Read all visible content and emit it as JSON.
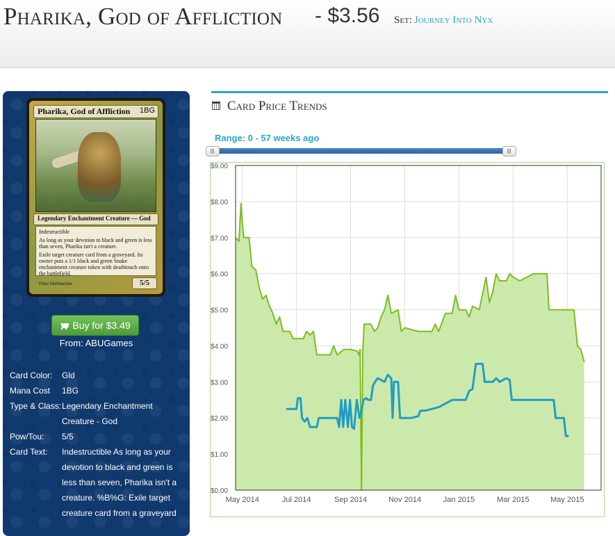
{
  "header": {
    "title": "Pharika, God of Affliction",
    "price": "- $3.56",
    "set_label": "Set:",
    "set_name": "Journey Into Nyx"
  },
  "card": {
    "name": "Pharika, God of Affliction",
    "mana": "1BG",
    "type_line": "Legendary Enchantment Creature — God",
    "text_1": "Indestructible",
    "text_2": "As long as your devotion to black and green is less than seven, Pharika isn't a creature.",
    "text_3": "Exile target creature card from a graveyard. Its owner puts a 1/1 black and green Snake enchantment creature token with deathtouch onto the battlefield.",
    "artist": "Peter Mohrbacher",
    "pt": "5/5"
  },
  "buy": {
    "label": "Buy for $3.49",
    "from": "From: ABUGames"
  },
  "details": [
    {
      "label": "Card Color:",
      "value": "Gld"
    },
    {
      "label": "Mana Cost",
      "value": "1BG"
    },
    {
      "label": "Type & Class:",
      "value": "Legendary Enchantment Creature - God"
    },
    {
      "label": "Pow/Tou:",
      "value": "5/5"
    },
    {
      "label": "Card Text:",
      "value": "Indestructible As long as your devotion to black and green is less than seven, Pharika isn't a creature. %B%G: Exile target creature card from a graveyard"
    }
  ],
  "section": {
    "title": "Card Price Trends",
    "range": "Range: 0 - 57 weeks ago"
  },
  "slider": {
    "start_fraction": 0.0,
    "end_fraction": 1.0
  },
  "colors": {
    "accent": "#27a6c8",
    "green_line": "#7dbd1e",
    "green_fill": "#c9e8a8",
    "blue_line": "#1f9ec4"
  },
  "chart_data": {
    "type": "line",
    "ylim": [
      0,
      9
    ],
    "y_ticks": [
      "$0.00",
      "$1.00",
      "$2.00",
      "$3.00",
      "$4.00",
      "$5.00",
      "$6.00",
      "$7.00",
      "$8.00",
      "$9.00"
    ],
    "x_ticks": [
      "May 2014",
      "Jul 2014",
      "Sep 2014",
      "Nov 2014",
      "Jan 2015",
      "Mar 2015",
      "May 2015"
    ],
    "x_tick_weeks": [
      1,
      9,
      17,
      25,
      33,
      41,
      49
    ],
    "xlim_weeks": [
      0,
      54
    ],
    "grid": true,
    "series": [
      {
        "name": "",
        "area": true,
        "points": [
          [
            0,
            7.0
          ],
          [
            0.5,
            6.9
          ],
          [
            0.8,
            7.95
          ],
          [
            1.0,
            7.4
          ],
          [
            1.2,
            7.0
          ],
          [
            2,
            7.0
          ],
          [
            2.4,
            6.2
          ],
          [
            3,
            6.1
          ],
          [
            3.5,
            5.6
          ],
          [
            4,
            5.3
          ],
          [
            4.5,
            5.4
          ],
          [
            5,
            5.1
          ],
          [
            5.5,
            4.9
          ],
          [
            6,
            4.6
          ],
          [
            6.5,
            4.8
          ],
          [
            7,
            4.4
          ],
          [
            8,
            4.4
          ],
          [
            8.5,
            4.2
          ],
          [
            10,
            4.2
          ],
          [
            10.5,
            4.4
          ],
          [
            11,
            4.3
          ],
          [
            11.5,
            4.4
          ],
          [
            12,
            3.75
          ],
          [
            14,
            3.75
          ],
          [
            14.5,
            4.0
          ],
          [
            15,
            3.75
          ],
          [
            16,
            3.9
          ],
          [
            17,
            3.9
          ],
          [
            18,
            3.85
          ],
          [
            18.2,
            3.75
          ],
          [
            18.4,
            3.9
          ],
          [
            18.6,
            0.0
          ],
          [
            18.8,
            3.9
          ],
          [
            19,
            4.6
          ],
          [
            20,
            4.6
          ],
          [
            20.5,
            4.4
          ],
          [
            21,
            4.5
          ],
          [
            21.5,
            4.8
          ],
          [
            22,
            5.0
          ],
          [
            22.5,
            5.4
          ],
          [
            23,
            4.9
          ],
          [
            24,
            5.0
          ],
          [
            24.5,
            4.4
          ],
          [
            25,
            4.5
          ],
          [
            27,
            4.4
          ],
          [
            29,
            4.4
          ],
          [
            29.5,
            4.6
          ],
          [
            30,
            4.4
          ],
          [
            31,
            4.9
          ],
          [
            32,
            4.9
          ],
          [
            32.5,
            5.4
          ],
          [
            33,
            5.0
          ],
          [
            34,
            5.0
          ],
          [
            34.5,
            4.8
          ],
          [
            35,
            5.1
          ],
          [
            36,
            5.0
          ],
          [
            37,
            5.9
          ],
          [
            37.5,
            5.2
          ],
          [
            38,
            5.5
          ],
          [
            38.5,
            6.0
          ],
          [
            39,
            5.8
          ],
          [
            40,
            5.8
          ],
          [
            40.5,
            6.0
          ],
          [
            41,
            5.9
          ],
          [
            42,
            5.8
          ],
          [
            43,
            5.9
          ],
          [
            44,
            6.0
          ],
          [
            46,
            6.0
          ],
          [
            46.3,
            5.0
          ],
          [
            48,
            5.0
          ],
          [
            50,
            5.0
          ],
          [
            50.5,
            4.0
          ],
          [
            51,
            3.9
          ],
          [
            51.5,
            3.56
          ]
        ]
      },
      {
        "name": "",
        "area": false,
        "points": [
          [
            7.5,
            2.25
          ],
          [
            9,
            2.25
          ],
          [
            9.2,
            2.55
          ],
          [
            9.6,
            2.55
          ],
          [
            9.8,
            2.0
          ],
          [
            10.2,
            1.9
          ],
          [
            10.6,
            2.0
          ],
          [
            11,
            1.75
          ],
          [
            12,
            1.75
          ],
          [
            12.3,
            2.0
          ],
          [
            14,
            2.0
          ],
          [
            15,
            2.0
          ],
          [
            15.3,
            1.75
          ],
          [
            15.6,
            2.5
          ],
          [
            15.9,
            1.75
          ],
          [
            16.2,
            2.5
          ],
          [
            16.6,
            1.75
          ],
          [
            16.9,
            2.5
          ],
          [
            17.2,
            1.75
          ],
          [
            17.5,
            1.7
          ],
          [
            17.9,
            2.5
          ],
          [
            18.3,
            2.0
          ],
          [
            18.6,
            2.2
          ],
          [
            18.9,
            2.5
          ],
          [
            19.3,
            2.55
          ],
          [
            19.6,
            2.5
          ],
          [
            20,
            2.5
          ],
          [
            20.3,
            2.9
          ],
          [
            20.6,
            3.0
          ],
          [
            21,
            3.1
          ],
          [
            22,
            3.0
          ],
          [
            22.5,
            3.2
          ],
          [
            23,
            3.1
          ],
          [
            23.2,
            2.0
          ],
          [
            23.4,
            3.0
          ],
          [
            24,
            3.0
          ],
          [
            24.3,
            2.0
          ],
          [
            26,
            2.0
          ],
          [
            27,
            2.05
          ],
          [
            27.3,
            2.2
          ],
          [
            28,
            2.2
          ],
          [
            30,
            2.3
          ],
          [
            31,
            2.4
          ],
          [
            32,
            2.5
          ],
          [
            34,
            2.5
          ],
          [
            34.5,
            2.75
          ],
          [
            35,
            2.8
          ],
          [
            35.5,
            3.5
          ],
          [
            36.5,
            3.5
          ],
          [
            36.8,
            3.0
          ],
          [
            38,
            3.0
          ],
          [
            38.5,
            3.1
          ],
          [
            39,
            3.0
          ],
          [
            40,
            3.1
          ],
          [
            40.5,
            3.05
          ],
          [
            40.8,
            2.5
          ],
          [
            44,
            2.5
          ],
          [
            47,
            2.5
          ],
          [
            47.3,
            2.0
          ],
          [
            48.5,
            2.0
          ],
          [
            48.8,
            1.5
          ],
          [
            49.2,
            1.5
          ]
        ]
      }
    ]
  }
}
